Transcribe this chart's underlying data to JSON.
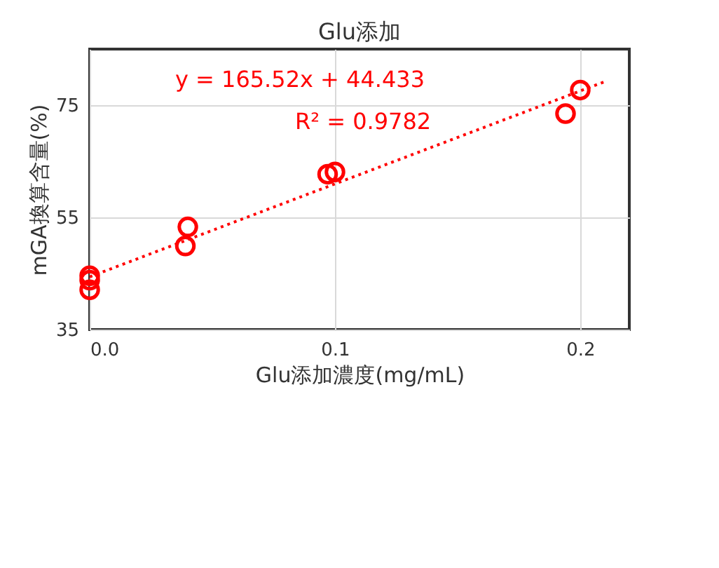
{
  "chart_data": {
    "type": "scatter",
    "title": "Glu添加",
    "xlabel": "Glu添加濃度(mg/mL)",
    "ylabel": "mGA換算含量(%)",
    "xlim": [
      0,
      0.22
    ],
    "xticks": [
      {
        "value": 0,
        "label": "0.0"
      },
      0.1,
      0.2
    ],
    "ylim": [
      35,
      85
    ],
    "yticks": [
      35,
      55,
      75
    ],
    "grid": true,
    "marker": "circle",
    "series": [
      {
        "color": "#ff0000",
        "x": [
          0,
          0,
          0,
          0.039,
          0.04,
          0.097,
          0.1,
          0.194,
          0.2
        ],
        "values": [
          44.6,
          43.8,
          42.1,
          49.9,
          53.3,
          62.7,
          63.1,
          73.5,
          77.7
        ]
      },
      {
        "type": "line",
        "marker": "none",
        "color": "#ff0000",
        "line_style": "dotted",
        "x": [
          0,
          0.21
        ],
        "values": [
          44.4,
          79.2
        ]
      }
    ],
    "annotations": [
      "y = 165.52x + 44.433",
      "R² = 0.9782"
    ]
  }
}
